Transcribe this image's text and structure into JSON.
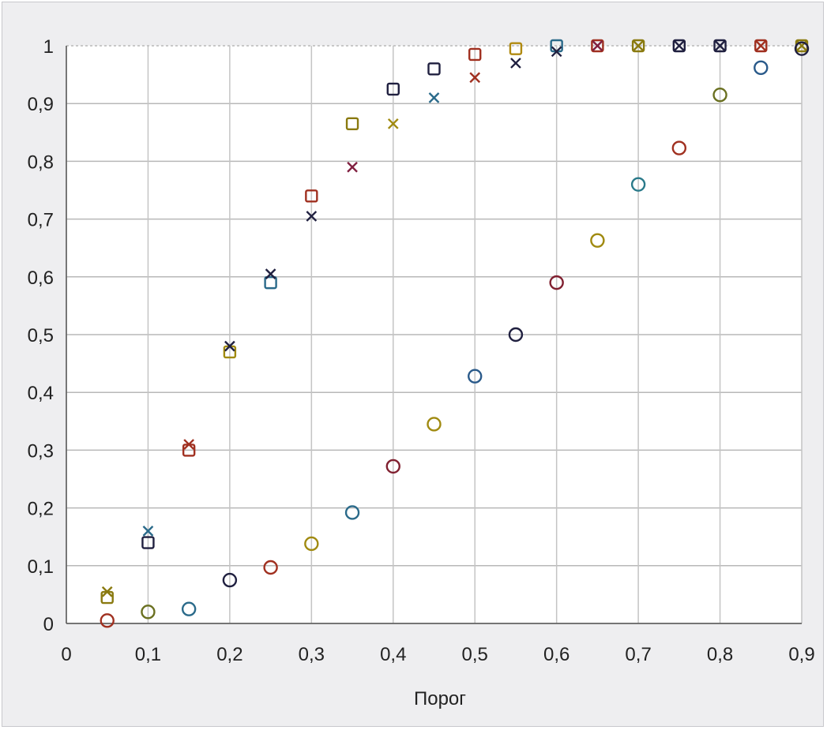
{
  "chart_data": {
    "type": "scatter",
    "title": "",
    "xlabel": "Порог",
    "ylabel": "",
    "xlim": [
      0,
      0.9
    ],
    "ylim": [
      0,
      1
    ],
    "grid": true,
    "xticks": [
      {
        "v": 0,
        "label": "0"
      },
      {
        "v": 0.1,
        "label": "0,1"
      },
      {
        "v": 0.2,
        "label": "0,2"
      },
      {
        "v": 0.3,
        "label": "0,3"
      },
      {
        "v": 0.4,
        "label": "0,4"
      },
      {
        "v": 0.5,
        "label": "0,5"
      },
      {
        "v": 0.6,
        "label": "0,6"
      },
      {
        "v": 0.7,
        "label": "0,7"
      },
      {
        "v": 0.8,
        "label": "0,8"
      },
      {
        "v": 0.9,
        "label": "0,9"
      }
    ],
    "yticks": [
      {
        "v": 0,
        "label": "0"
      },
      {
        "v": 0.1,
        "label": "0,1"
      },
      {
        "v": 0.2,
        "label": "0,2"
      },
      {
        "v": 0.3,
        "label": "0,3"
      },
      {
        "v": 0.4,
        "label": "0,4"
      },
      {
        "v": 0.5,
        "label": "0,5"
      },
      {
        "v": 0.6,
        "label": "0,6"
      },
      {
        "v": 0.7,
        "label": "0,7"
      },
      {
        "v": 0.8,
        "label": "0,8"
      },
      {
        "v": 0.9,
        "label": "0,9"
      },
      {
        "v": 1,
        "label": "1"
      }
    ],
    "series": [
      {
        "marker": "square",
        "x": [
          0.05,
          0.1,
          0.15,
          0.2,
          0.25,
          0.3,
          0.35,
          0.4,
          0.45,
          0.5,
          0.55,
          0.6,
          0.65,
          0.7,
          0.75,
          0.8,
          0.85,
          0.9
        ],
        "y": [
          0.045,
          0.14,
          0.3,
          0.47,
          0.59,
          0.74,
          0.865,
          0.925,
          0.96,
          0.985,
          0.995,
          1.0,
          1.0,
          1.0,
          1.0,
          1.0,
          1.0,
          1.0
        ],
        "colors": [
          "#8a7a10",
          "#202040",
          "#a03020",
          "#a08a10",
          "#2a6a8a",
          "#a03020",
          "#8a7a10",
          "#202040",
          "#202040",
          "#a03020",
          "#b08a10",
          "#2a6a8a",
          "#a03020",
          "#8a7a10",
          "#202040",
          "#202040",
          "#a03020",
          "#8a7a10"
        ]
      },
      {
        "marker": "cross",
        "x": [
          0.05,
          0.1,
          0.15,
          0.2,
          0.25,
          0.3,
          0.35,
          0.4,
          0.45,
          0.5,
          0.55,
          0.6,
          0.65,
          0.7,
          0.75,
          0.8,
          0.85,
          0.9
        ],
        "y": [
          0.055,
          0.16,
          0.31,
          0.48,
          0.605,
          0.705,
          0.79,
          0.865,
          0.91,
          0.945,
          0.97,
          0.99,
          1.0,
          1.0,
          1.0,
          1.0,
          1.0,
          1.0
        ],
        "colors": [
          "#8a7a10",
          "#2a6a8a",
          "#a03020",
          "#202040",
          "#202040",
          "#202040",
          "#802040",
          "#a08a10",
          "#2a6a8a",
          "#a03020",
          "#202040",
          "#202040",
          "#802040",
          "#8a7a10",
          "#202040",
          "#202040",
          "#a03020",
          "#8a7a10"
        ]
      },
      {
        "marker": "circle",
        "x": [
          0.05,
          0.1,
          0.15,
          0.2,
          0.25,
          0.3,
          0.35,
          0.4,
          0.45,
          0.5,
          0.55,
          0.6,
          0.65,
          0.7,
          0.75,
          0.8,
          0.85,
          0.9
        ],
        "y": [
          0.005,
          0.02,
          0.025,
          0.075,
          0.097,
          0.138,
          0.192,
          0.272,
          0.345,
          0.428,
          0.5,
          0.59,
          0.663,
          0.76,
          0.823,
          0.915,
          0.962,
          0.995
        ],
        "colors": [
          "#a03020",
          "#6a7020",
          "#2a6a8a",
          "#202040",
          "#a03020",
          "#a08a10",
          "#2a6a8a",
          "#802030",
          "#a08a10",
          "#2a5a8a",
          "#202040",
          "#802030",
          "#a08a10",
          "#2a7a8a",
          "#a03020",
          "#6a7020",
          "#2a5a8a",
          "#202040"
        ]
      }
    ]
  }
}
